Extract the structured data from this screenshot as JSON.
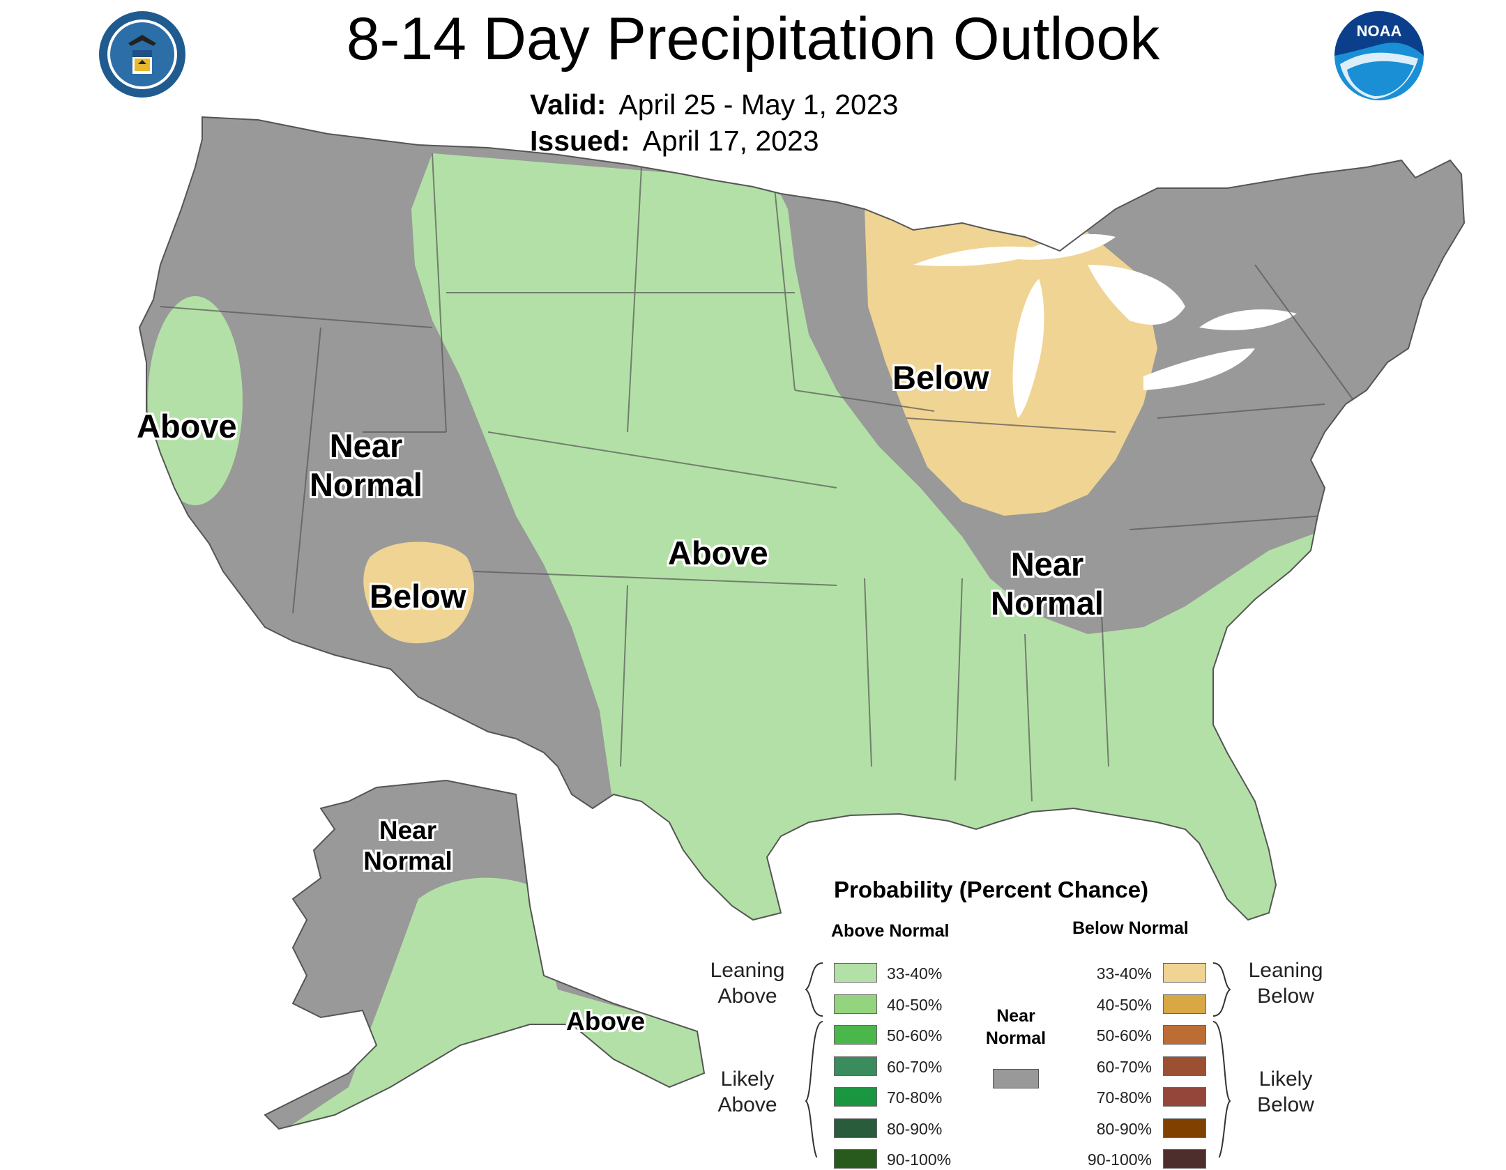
{
  "title": "8-14 Day Precipitation Outlook",
  "valid_label": "Valid:",
  "valid_value": "April 25 - May 1, 2023",
  "issued_label": "Issued:",
  "issued_value": "April 17, 2023",
  "colors": {
    "near_normal": "#999999",
    "above_33_40": "#b3e0a6",
    "below_33_40": "#f0d493",
    "lakes": "#ffffff",
    "borders": "#666666"
  },
  "map_labels": {
    "west_coast": "Above",
    "great_basin_line1": "Near",
    "great_basin_line2": "Normal",
    "arizona": "Below",
    "plains": "Above",
    "great_lakes": "Below",
    "ohio_valley_line1": "Near",
    "ohio_valley_line2": "Normal",
    "alaska_north_line1": "Near",
    "alaska_north_line2": "Normal",
    "alaska_south": "Above"
  },
  "legend": {
    "title": "Probability (Percent Chance)",
    "above_head": "Above Normal",
    "below_head": "Below Normal",
    "leaning_above_1": "Leaning",
    "leaning_above_2": "Above",
    "likely_above_1": "Likely",
    "likely_above_2": "Above",
    "leaning_below_1": "Leaning",
    "leaning_below_2": "Below",
    "likely_below_1": "Likely",
    "likely_below_2": "Below",
    "near_1": "Near",
    "near_2": "Normal",
    "above_rows": [
      {
        "label": "33-40%",
        "color": "#b3e0a6"
      },
      {
        "label": "40-50%",
        "color": "#94d47f"
      },
      {
        "label": "50-60%",
        "color": "#4bb74a"
      },
      {
        "label": "60-70%",
        "color": "#3a8c5c"
      },
      {
        "label": "70-80%",
        "color": "#1a9641"
      },
      {
        "label": "80-90%",
        "color": "#285c3a"
      },
      {
        "label": "90-100%",
        "color": "#285a1e"
      }
    ],
    "below_rows": [
      {
        "label": "33-40%",
        "color": "#f0d493"
      },
      {
        "label": "40-50%",
        "color": "#d8a845"
      },
      {
        "label": "50-60%",
        "color": "#bb6d33"
      },
      {
        "label": "60-70%",
        "color": "#9b5031"
      },
      {
        "label": "70-80%",
        "color": "#934639"
      },
      {
        "label": "80-90%",
        "color": "#804000"
      },
      {
        "label": "90-100%",
        "color": "#4e2d2d"
      }
    ]
  }
}
